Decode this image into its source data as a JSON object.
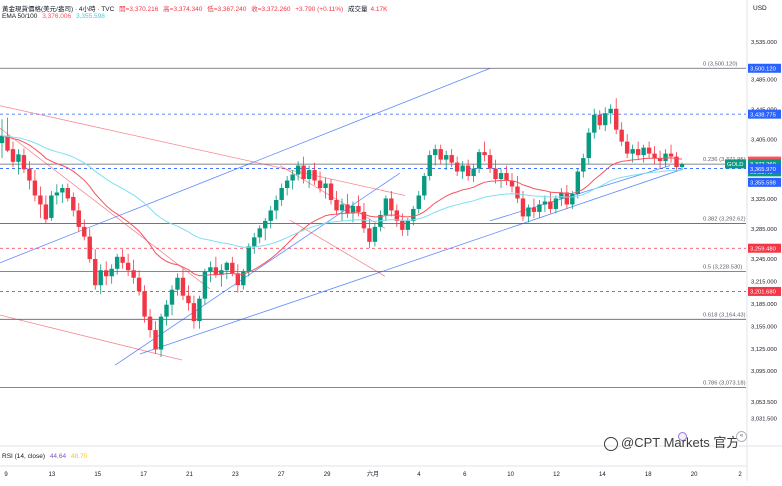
{
  "header": {
    "symbol": "黃金現貨價格(美元/盎司) · 4小時 · TVC",
    "open": "開=3,370.216",
    "high": "高=3,374.340",
    "low": "低=3,367.240",
    "close": "收=3,372.260",
    "change": "+3.790 (+0.11%)",
    "volume": "成交量",
    "volume_value": "4.17K",
    "ema_label": "EMA 50/100",
    "ema50": "3,376.006",
    "ema100": "3,355.598",
    "currency": "USD"
  },
  "rsi_legend": {
    "label": "RSI (14, close)",
    "value1": "44.64",
    "value2": "48.70"
  },
  "watermark": "@CPT Markets 官方",
  "colors": {
    "up": "#089981",
    "down": "#f23645",
    "ema50": "#f7525f",
    "ema100": "#7fdfef",
    "trend_blue": "#2962ff",
    "trend_red": "#f23645",
    "fib": "#5d606b",
    "blue_dash": "#2962ff",
    "red_dash": "#f23645"
  },
  "chart_data": {
    "type": "candlestick",
    "timeframe": "4h",
    "y_axis_label": "USD",
    "ylim": [
      3003,
      3562
    ],
    "y_ticks": [
      "3,535.000",
      "3,485.000",
      "3,445.000",
      "3,405.000",
      "3,365.000",
      "3,325.000",
      "3,285.000",
      "3,245.000",
      "3,215.000",
      "3,185.000",
      "3,155.000",
      "3,125.000",
      "3,095.000",
      "3,053.500",
      "3,031.500"
    ],
    "x_ticks": [
      "9",
      "13",
      "15",
      "17",
      "21",
      "23",
      "27",
      "29",
      "六月",
      "4",
      "6",
      "10",
      "12",
      "14",
      "18",
      "20",
      "2"
    ],
    "price_labels": [
      {
        "text": "3,500.120",
        "value": 3500.12,
        "kind": "blue"
      },
      {
        "text": "3,438.775",
        "value": 3438.775,
        "kind": "blue"
      },
      {
        "text": "3,376.006",
        "value": 3376.006,
        "kind": "ema50"
      },
      {
        "text": "GOLD",
        "value": 3372.26,
        "kind": "last_name"
      },
      {
        "text": "3,372.260",
        "value": 3372.26,
        "kind": "last"
      },
      {
        "text": "03:53:46",
        "value": 3372.26,
        "kind": "countdown"
      },
      {
        "text": "3,365.970",
        "value": 3365.97,
        "kind": "blue"
      },
      {
        "text": "3,355.598",
        "value": 3355.598,
        "kind": "ema100"
      },
      {
        "text": "3,259.480",
        "value": 3259.48,
        "kind": "red"
      },
      {
        "text": "3,201.680",
        "value": 3201.68,
        "kind": "red"
      }
    ],
    "fib_levels": [
      {
        "ratio": "0",
        "value": 3500.12,
        "text": "0 (3,500.120)"
      },
      {
        "ratio": "0.236",
        "value": 3371.95,
        "text": "0.236 (3,371.95)"
      },
      {
        "ratio": "0.382",
        "value": 3292.62,
        "text": "0.382 (3,292.62)"
      },
      {
        "ratio": "0.5",
        "value": 3228.53,
        "text": "0.5 (3,228.530)"
      },
      {
        "ratio": "0.618",
        "value": 3164.43,
        "text": "0.618 (3,164.43)"
      },
      {
        "ratio": "0.786",
        "value": 3073.18,
        "text": "0.786 (3,073.18)"
      }
    ],
    "h_lines": [
      {
        "value": 3438.775,
        "kind": "blue"
      },
      {
        "value": 3365.97,
        "kind": "blue"
      },
      {
        "value": 3259.48,
        "kind": "red"
      },
      {
        "value": 3201.68,
        "kind": "red"
      }
    ],
    "trendlines": [
      {
        "kind": "blue",
        "p1": [
          0,
          3240
        ],
        "p2": [
          490,
          3500
        ]
      },
      {
        "kind": "blue",
        "p1": [
          115,
          3103
        ],
        "p2": [
          400,
          3360
        ]
      },
      {
        "kind": "blue",
        "p1": [
          140,
          3118
        ],
        "p2": [
          682,
          3365
        ]
      },
      {
        "kind": "blue",
        "p1": [
          490,
          3296
        ],
        "p2": [
          670,
          3370
        ]
      },
      {
        "kind": "red",
        "p1": [
          0,
          3450
        ],
        "p2": [
          405,
          3330
        ]
      },
      {
        "kind": "red",
        "p1": [
          0,
          3420
        ],
        "p2": [
          210,
          3205
        ]
      },
      {
        "kind": "red",
        "p1": [
          0,
          3170
        ],
        "p2": [
          182,
          3110
        ]
      },
      {
        "kind": "red",
        "p1": [
          280,
          3370
        ],
        "p2": [
          385,
          3286
        ]
      },
      {
        "kind": "red",
        "p1": [
          290,
          3297
        ],
        "p2": [
          385,
          3222
        ]
      }
    ],
    "candles_ohlc": [
      [
        3400,
        3432,
        3380,
        3410
      ],
      [
        3410,
        3434,
        3388,
        3390
      ],
      [
        3392,
        3402,
        3368,
        3375
      ],
      [
        3375,
        3392,
        3358,
        3385
      ],
      [
        3384,
        3393,
        3360,
        3365
      ],
      [
        3366,
        3376,
        3338,
        3350
      ],
      [
        3350,
        3364,
        3322,
        3330
      ],
      [
        3330,
        3342,
        3300,
        3318
      ],
      [
        3318,
        3330,
        3292,
        3298
      ],
      [
        3300,
        3336,
        3296,
        3330
      ],
      [
        3330,
        3345,
        3318,
        3334
      ],
      [
        3334,
        3345,
        3320,
        3340
      ],
      [
        3340,
        3346,
        3322,
        3326
      ],
      [
        3328,
        3334,
        3302,
        3310
      ],
      [
        3310,
        3320,
        3282,
        3288
      ],
      [
        3288,
        3298,
        3270,
        3275
      ],
      [
        3275,
        3286,
        3240,
        3245
      ],
      [
        3245,
        3258,
        3204,
        3210
      ],
      [
        3210,
        3238,
        3198,
        3230
      ],
      [
        3230,
        3242,
        3210,
        3222
      ],
      [
        3222,
        3238,
        3212,
        3232
      ],
      [
        3232,
        3252,
        3224,
        3248
      ],
      [
        3248,
        3258,
        3232,
        3240
      ],
      [
        3240,
        3252,
        3222,
        3230
      ],
      [
        3230,
        3244,
        3212,
        3220
      ],
      [
        3220,
        3230,
        3196,
        3202
      ],
      [
        3202,
        3210,
        3160,
        3168
      ],
      [
        3168,
        3178,
        3140,
        3150
      ],
      [
        3150,
        3162,
        3118,
        3124
      ],
      [
        3124,
        3172,
        3114,
        3168
      ],
      [
        3168,
        3190,
        3156,
        3184
      ],
      [
        3184,
        3210,
        3170,
        3204
      ],
      [
        3204,
        3226,
        3196,
        3220
      ],
      [
        3220,
        3232,
        3190,
        3196
      ],
      [
        3196,
        3210,
        3176,
        3186
      ],
      [
        3186,
        3196,
        3152,
        3162
      ],
      [
        3162,
        3196,
        3152,
        3192
      ],
      [
        3192,
        3232,
        3184,
        3228
      ],
      [
        3228,
        3242,
        3214,
        3234
      ],
      [
        3234,
        3248,
        3220,
        3224
      ],
      [
        3224,
        3238,
        3208,
        3230
      ],
      [
        3230,
        3242,
        3218,
        3240
      ],
      [
        3240,
        3248,
        3222,
        3226
      ],
      [
        3226,
        3238,
        3200,
        3210
      ],
      [
        3210,
        3232,
        3204,
        3228
      ],
      [
        3228,
        3266,
        3222,
        3262
      ],
      [
        3262,
        3280,
        3252,
        3274
      ],
      [
        3274,
        3290,
        3266,
        3286
      ],
      [
        3286,
        3300,
        3270,
        3296
      ],
      [
        3296,
        3316,
        3286,
        3310
      ],
      [
        3310,
        3330,
        3298,
        3324
      ],
      [
        3324,
        3346,
        3316,
        3340
      ],
      [
        3340,
        3356,
        3330,
        3350
      ],
      [
        3350,
        3364,
        3338,
        3358
      ],
      [
        3358,
        3376,
        3350,
        3370
      ],
      [
        3370,
        3382,
        3346,
        3352
      ],
      [
        3352,
        3370,
        3340,
        3364
      ],
      [
        3364,
        3374,
        3344,
        3350
      ],
      [
        3350,
        3362,
        3334,
        3340
      ],
      [
        3340,
        3354,
        3326,
        3346
      ],
      [
        3346,
        3352,
        3318,
        3324
      ],
      [
        3324,
        3336,
        3304,
        3310
      ],
      [
        3310,
        3326,
        3296,
        3318
      ],
      [
        3318,
        3332,
        3300,
        3306
      ],
      [
        3306,
        3322,
        3294,
        3316
      ],
      [
        3316,
        3330,
        3302,
        3308
      ],
      [
        3308,
        3320,
        3280,
        3286
      ],
      [
        3286,
        3298,
        3260,
        3268
      ],
      [
        3268,
        3292,
        3262,
        3288
      ],
      [
        3288,
        3310,
        3282,
        3304
      ],
      [
        3304,
        3330,
        3296,
        3326
      ],
      [
        3326,
        3336,
        3302,
        3310
      ],
      [
        3310,
        3318,
        3288,
        3296
      ],
      [
        3296,
        3306,
        3276,
        3284
      ],
      [
        3284,
        3300,
        3276,
        3296
      ],
      [
        3296,
        3316,
        3290,
        3312
      ],
      [
        3312,
        3336,
        3306,
        3330
      ],
      [
        3330,
        3360,
        3324,
        3356
      ],
      [
        3356,
        3390,
        3350,
        3384
      ],
      [
        3384,
        3398,
        3370,
        3392
      ],
      [
        3392,
        3398,
        3372,
        3378
      ],
      [
        3378,
        3390,
        3364,
        3384
      ],
      [
        3384,
        3392,
        3368,
        3374
      ],
      [
        3374,
        3382,
        3356,
        3362
      ],
      [
        3362,
        3376,
        3352,
        3370
      ],
      [
        3370,
        3378,
        3350,
        3356
      ],
      [
        3356,
        3372,
        3348,
        3366
      ],
      [
        3366,
        3392,
        3360,
        3388
      ],
      [
        3388,
        3402,
        3376,
        3384
      ],
      [
        3384,
        3392,
        3360,
        3366
      ],
      [
        3366,
        3378,
        3346,
        3352
      ],
      [
        3352,
        3366,
        3340,
        3360
      ],
      [
        3360,
        3370,
        3344,
        3350
      ],
      [
        3350,
        3360,
        3334,
        3342
      ],
      [
        3342,
        3356,
        3320,
        3326
      ],
      [
        3326,
        3336,
        3296,
        3302
      ],
      [
        3302,
        3318,
        3294,
        3314
      ],
      [
        3314,
        3326,
        3300,
        3308
      ],
      [
        3308,
        3324,
        3300,
        3318
      ],
      [
        3318,
        3330,
        3308,
        3322
      ],
      [
        3322,
        3334,
        3306,
        3312
      ],
      [
        3312,
        3330,
        3306,
        3326
      ],
      [
        3326,
        3340,
        3316,
        3334
      ],
      [
        3334,
        3344,
        3312,
        3318
      ],
      [
        3318,
        3336,
        3312,
        3332
      ],
      [
        3332,
        3366,
        3326,
        3362
      ],
      [
        3362,
        3386,
        3354,
        3380
      ],
      [
        3380,
        3420,
        3372,
        3414
      ],
      [
        3414,
        3446,
        3406,
        3438
      ],
      [
        3438,
        3444,
        3418,
        3424
      ],
      [
        3424,
        3448,
        3416,
        3440
      ],
      [
        3440,
        3452,
        3426,
        3446
      ],
      [
        3446,
        3460,
        3412,
        3418
      ],
      [
        3418,
        3428,
        3396,
        3402
      ],
      [
        3402,
        3412,
        3380,
        3386
      ],
      [
        3386,
        3398,
        3374,
        3392
      ],
      [
        3392,
        3402,
        3378,
        3384
      ],
      [
        3384,
        3398,
        3374,
        3394
      ],
      [
        3394,
        3402,
        3380,
        3386
      ],
      [
        3386,
        3396,
        3372,
        3380
      ],
      [
        3380,
        3390,
        3366,
        3376
      ],
      [
        3376,
        3392,
        3368,
        3386
      ],
      [
        3386,
        3398,
        3374,
        3382
      ],
      [
        3382,
        3388,
        3362,
        3368
      ],
      [
        3368,
        3374,
        3364,
        3372
      ]
    ]
  }
}
